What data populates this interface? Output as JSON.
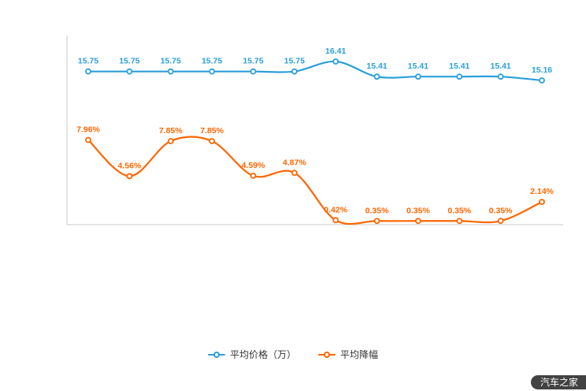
{
  "chart_data": {
    "type": "line",
    "title": "",
    "smooth": true,
    "grid": false,
    "legend_position": "bottom",
    "x_axis": {
      "labels_visible": false
    },
    "y_axis": {
      "labels_visible": false
    },
    "series": [
      {
        "name": "平均价格（万）",
        "color": "#2b9fdb",
        "values": [
          15.75,
          15.75,
          15.75,
          15.75,
          15.75,
          15.75,
          16.41,
          15.41,
          15.41,
          15.41,
          15.41,
          15.16
        ],
        "labels": [
          "15.75",
          "15.75",
          "15.75",
          "15.75",
          "15.75",
          "15.75",
          "16.41",
          "15.41",
          "15.41",
          "15.41",
          "15.41",
          "15.16"
        ]
      },
      {
        "name": "平均降幅",
        "color": "#ff6600",
        "values": [
          7.96,
          4.56,
          7.85,
          7.85,
          4.59,
          4.87,
          0.42,
          0.35,
          0.35,
          0.35,
          0.35,
          2.14
        ],
        "labels": [
          "7.96%",
          "4.56%",
          "7.85%",
          "7.85%",
          "4.59%",
          "4.87%",
          "0.42%",
          "0.35%",
          "0.35%",
          "0.35%",
          "0.35%",
          "2.14%"
        ]
      }
    ]
  },
  "legend": {
    "items": [
      {
        "label": "平均价格（万）",
        "color": "#2b9fdb"
      },
      {
        "label": "平均降幅",
        "color": "#ff6600"
      }
    ]
  },
  "watermark": "汽车之家"
}
